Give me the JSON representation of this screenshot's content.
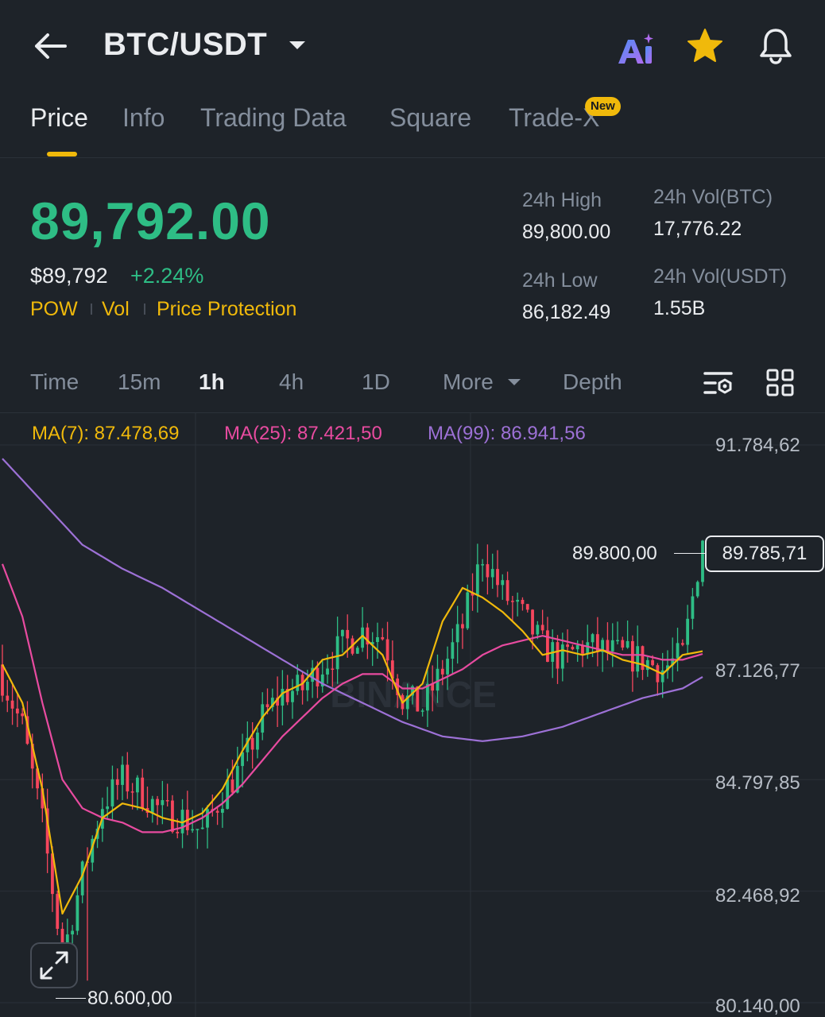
{
  "header": {
    "pair": "BTC/USDT",
    "ai_label": "Ai"
  },
  "tabs": [
    {
      "label": "Price",
      "active": true
    },
    {
      "label": "Info"
    },
    {
      "label": "Trading Data"
    },
    {
      "label": "Square"
    },
    {
      "label": "Trade-X",
      "badge": "New"
    }
  ],
  "ticker": {
    "last_price": "89,792.00",
    "usd_price": "$89,792",
    "change_pct": "+2.24%",
    "tags": [
      "POW",
      "Vol",
      "Price Protection"
    ],
    "stats": {
      "high_label": "24h High",
      "high_value": "89,800.00",
      "low_label": "24h Low",
      "low_value": "86,182.49",
      "vol_btc_label": "24h Vol(BTC)",
      "vol_btc_value": "17,776.22",
      "vol_usdt_label": "24h Vol(USDT)",
      "vol_usdt_value": "1.55B"
    }
  },
  "timeframes": [
    "Time",
    "15m",
    "1h",
    "4h",
    "1D",
    "More",
    "Depth"
  ],
  "active_timeframe": "1h",
  "colors": {
    "up": "#2EBD85",
    "down": "#F6465D",
    "accent": "#F0B90B",
    "ma7": "#F0B90B",
    "ma25": "#E84BA0",
    "ma99": "#9D71D6"
  },
  "icons": [
    "back-arrow-icon",
    "caret-down-icon",
    "ai-icon",
    "star-icon",
    "bell-icon",
    "chart-settings-icon",
    "grid-layout-icon",
    "expand-icon"
  ],
  "chart": {
    "ma7_label": "MA(7): 87.478,69",
    "ma25_label": "MA(25): 87.421,50",
    "ma99_label": "MA(99): 86.941,56",
    "watermark": "BINANCE",
    "high_marker": "89.800,00",
    "low_marker": "80.600,00",
    "current_price_label": "89.785,71",
    "axis_labels": [
      "91.784,62",
      "87.126,77",
      "84.797,85",
      "82.468,92",
      "80.140,00"
    ]
  },
  "chart_data": {
    "type": "candlestick",
    "interval": "1h",
    "y_ticks": [
      91784.62,
      87126.77,
      84797.85,
      82468.92,
      80140.0
    ],
    "ylim": [
      80140.0,
      91784.62
    ],
    "high": 89800.0,
    "low": 80600.0,
    "last": 89785.71,
    "close_path": [
      [
        0,
        86900
      ],
      [
        4,
        85900
      ],
      [
        8,
        83900
      ],
      [
        12,
        81100
      ],
      [
        16,
        82800
      ],
      [
        20,
        84300
      ],
      [
        24,
        84800
      ],
      [
        28,
        84500
      ],
      [
        32,
        84100
      ],
      [
        36,
        84000
      ],
      [
        40,
        83700
      ],
      [
        44,
        84500
      ],
      [
        48,
        85100
      ],
      [
        52,
        86100
      ],
      [
        56,
        86600
      ],
      [
        60,
        86700
      ],
      [
        64,
        87200
      ],
      [
        68,
        87600
      ],
      [
        72,
        87900
      ],
      [
        76,
        87800
      ],
      [
        80,
        86500
      ],
      [
        84,
        86300
      ],
      [
        88,
        87100
      ],
      [
        92,
        88000
      ],
      [
        96,
        89500
      ],
      [
        100,
        88700
      ],
      [
        104,
        88200
      ],
      [
        108,
        87600
      ],
      [
        112,
        87300
      ],
      [
        116,
        87600
      ],
      [
        120,
        87500
      ],
      [
        124,
        87400
      ],
      [
        128,
        87300
      ],
      [
        132,
        87100
      ],
      [
        136,
        87400
      ],
      [
        140,
        89785.71
      ]
    ],
    "ma7_path": [
      [
        0,
        87200
      ],
      [
        4,
        86400
      ],
      [
        8,
        84600
      ],
      [
        12,
        82000
      ],
      [
        16,
        82800
      ],
      [
        20,
        84000
      ],
      [
        24,
        84300
      ],
      [
        28,
        84200
      ],
      [
        32,
        84000
      ],
      [
        36,
        83900
      ],
      [
        40,
        84100
      ],
      [
        44,
        84600
      ],
      [
        48,
        85400
      ],
      [
        52,
        86100
      ],
      [
        56,
        86600
      ],
      [
        60,
        86800
      ],
      [
        64,
        87300
      ],
      [
        68,
        87400
      ],
      [
        72,
        87800
      ],
      [
        76,
        87400
      ],
      [
        80,
        86400
      ],
      [
        84,
        86800
      ],
      [
        88,
        88100
      ],
      [
        92,
        88800
      ],
      [
        96,
        88600
      ],
      [
        100,
        88300
      ],
      [
        104,
        87900
      ],
      [
        108,
        87400
      ],
      [
        112,
        87500
      ],
      [
        116,
        87400
      ],
      [
        120,
        87500
      ],
      [
        124,
        87300
      ],
      [
        128,
        87200
      ],
      [
        132,
        87000
      ],
      [
        136,
        87400
      ],
      [
        140,
        87478.69
      ]
    ],
    "ma25_path": [
      [
        0,
        89300
      ],
      [
        4,
        88200
      ],
      [
        8,
        86400
      ],
      [
        12,
        84800
      ],
      [
        16,
        84200
      ],
      [
        20,
        84000
      ],
      [
        24,
        83900
      ],
      [
        28,
        83700
      ],
      [
        32,
        83700
      ],
      [
        36,
        83800
      ],
      [
        40,
        84000
      ],
      [
        44,
        84300
      ],
      [
        48,
        84700
      ],
      [
        52,
        85200
      ],
      [
        56,
        85700
      ],
      [
        60,
        86100
      ],
      [
        64,
        86500
      ],
      [
        68,
        86800
      ],
      [
        72,
        87000
      ],
      [
        76,
        87000
      ],
      [
        80,
        86700
      ],
      [
        84,
        86700
      ],
      [
        88,
        86900
      ],
      [
        92,
        87100
      ],
      [
        96,
        87400
      ],
      [
        100,
        87600
      ],
      [
        104,
        87700
      ],
      [
        108,
        87800
      ],
      [
        112,
        87700
      ],
      [
        116,
        87600
      ],
      [
        120,
        87500
      ],
      [
        124,
        87400
      ],
      [
        128,
        87400
      ],
      [
        132,
        87300
      ],
      [
        136,
        87300
      ],
      [
        140,
        87421.5
      ]
    ],
    "ma99_path": [
      [
        0,
        91500
      ],
      [
        8,
        90600
      ],
      [
        16,
        89700
      ],
      [
        24,
        89200
      ],
      [
        32,
        88800
      ],
      [
        40,
        88300
      ],
      [
        48,
        87800
      ],
      [
        56,
        87300
      ],
      [
        64,
        86800
      ],
      [
        72,
        86400
      ],
      [
        80,
        86000
      ],
      [
        88,
        85700
      ],
      [
        96,
        85600
      ],
      [
        104,
        85700
      ],
      [
        112,
        85900
      ],
      [
        120,
        86200
      ],
      [
        128,
        86500
      ],
      [
        136,
        86700
      ],
      [
        140,
        86941.56
      ]
    ]
  }
}
